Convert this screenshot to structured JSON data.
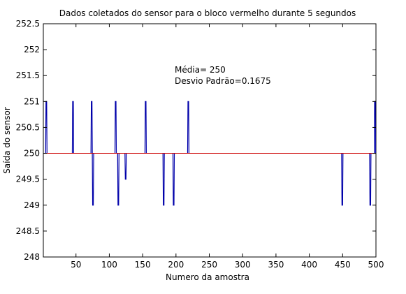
{
  "chart_data": {
    "type": "line",
    "title": "Dados coletados do sensor para o bloco vermelho durante 5 segundos",
    "xlabel": "Numero da amostra",
    "ylabel": "Saída do sensor",
    "xlim": [
      1,
      500
    ],
    "ylim": [
      248,
      252.5
    ],
    "xticks": [
      50,
      100,
      150,
      200,
      250,
      300,
      350,
      400,
      450,
      500
    ],
    "yticks": [
      248,
      248.5,
      249,
      249.5,
      250,
      250.5,
      251,
      251.5,
      252,
      252.5
    ],
    "grid": false,
    "annotations": [
      "Média= 250",
      "Desvio Padrão=0.1675"
    ],
    "series": [
      {
        "color": "#0000aa",
        "baseline": 250,
        "points": [
          {
            "x": 5,
            "y": 251
          },
          {
            "x": 45,
            "y": 251
          },
          {
            "x": 73,
            "y": 251
          },
          {
            "x": 75,
            "y": 249
          },
          {
            "x": 109,
            "y": 251
          },
          {
            "x": 113,
            "y": 249
          },
          {
            "x": 124,
            "y": 249.5
          },
          {
            "x": 154,
            "y": 251
          },
          {
            "x": 181,
            "y": 249
          },
          {
            "x": 196,
            "y": 249
          },
          {
            "x": 218,
            "y": 251
          },
          {
            "x": 449,
            "y": 249
          },
          {
            "x": 491,
            "y": 249
          },
          {
            "x": 498,
            "y": 251
          }
        ]
      },
      {
        "color": "#cc0000",
        "constant": 250
      }
    ]
  }
}
